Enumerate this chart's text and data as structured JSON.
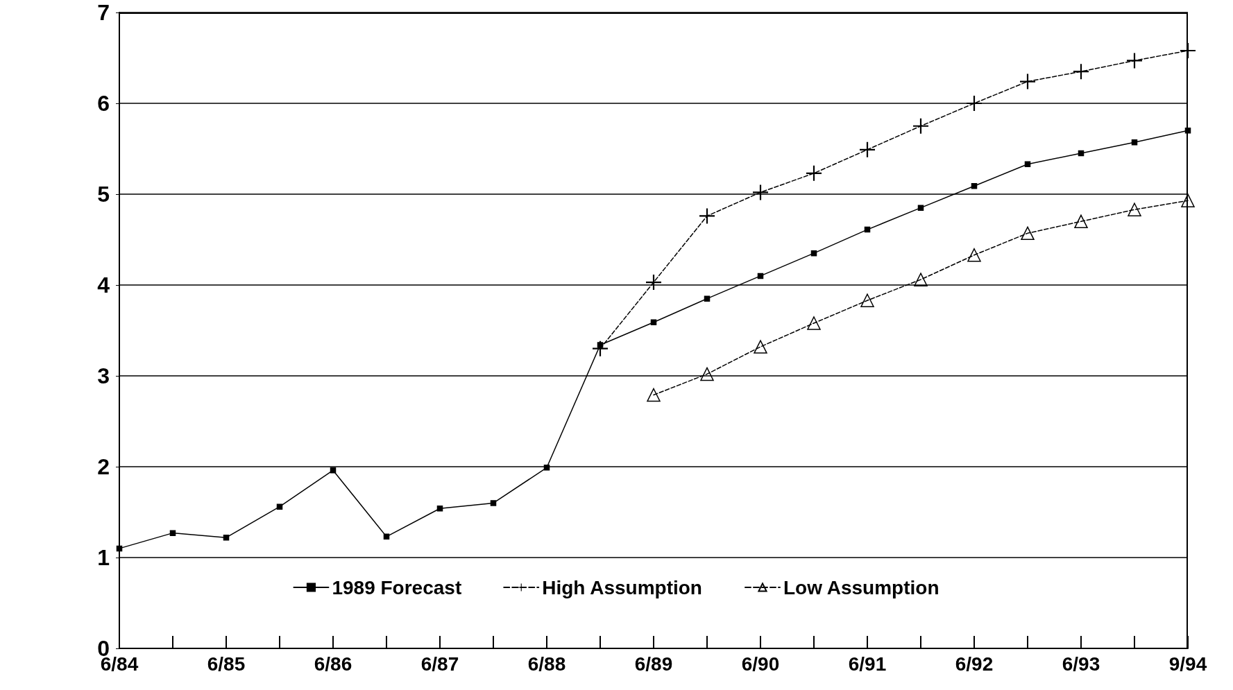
{
  "chart_data": {
    "type": "line",
    "categories": [
      "6/84",
      null,
      "6/85",
      null,
      "6/86",
      null,
      "6/87",
      null,
      "6/88",
      null,
      "6/89",
      null,
      "6/90",
      null,
      "6/91",
      null,
      "6/92",
      null,
      "6/93",
      null,
      "9/94"
    ],
    "series": [
      {
        "name": "1989 Forecast",
        "color": "#000000",
        "marker": "square",
        "line_style": "solid",
        "values": [
          1.1,
          1.27,
          1.22,
          1.56,
          1.96,
          1.23,
          1.54,
          1.6,
          1.99,
          3.34,
          3.59,
          3.85,
          4.1,
          4.35,
          4.61,
          4.85,
          5.09,
          5.33,
          5.45,
          5.57,
          5.7
        ]
      },
      {
        "name": "High Assumption",
        "color": "#000000",
        "marker": "cross",
        "line_style": "dashed",
        "values": [
          null,
          null,
          null,
          null,
          null,
          null,
          null,
          null,
          null,
          3.3,
          4.03,
          4.76,
          5.02,
          5.23,
          5.49,
          5.75,
          6.0,
          6.24,
          6.35,
          6.47,
          6.58
        ]
      },
      {
        "name": "Low Assumption",
        "color": "#000000",
        "marker": "triangle",
        "line_style": "dashed",
        "values": [
          null,
          null,
          null,
          null,
          null,
          null,
          null,
          null,
          null,
          null,
          2.79,
          3.02,
          3.32,
          3.58,
          3.83,
          4.06,
          4.33,
          4.57,
          4.7,
          4.83,
          4.93
        ]
      }
    ],
    "ylim": [
      0,
      7
    ],
    "yticks": [
      0,
      1,
      2,
      3,
      4,
      5,
      6,
      7
    ],
    "grid": "y",
    "legend": "bottom"
  }
}
